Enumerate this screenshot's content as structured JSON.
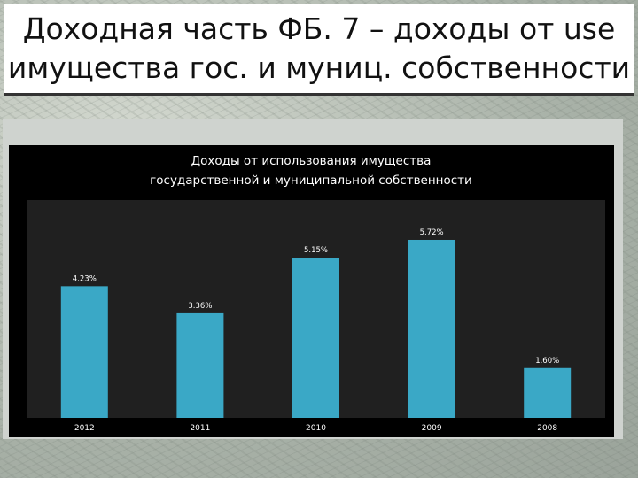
{
  "slide": {
    "title_line1": "Доходная часть ФБ. 7 – доходы от use",
    "title_line2": "имущества гос. и муниц. собственности"
  },
  "chart_data": {
    "type": "bar",
    "title_line1": "Доходы от использования имущества",
    "title_line2": "государственной и муниципальной собственности",
    "categories": [
      "2012",
      "2011",
      "2010",
      "2009",
      "2008"
    ],
    "values": [
      4.23,
      3.36,
      5.15,
      5.72,
      1.6
    ],
    "data_labels": [
      "4.23%",
      "3.36%",
      "5.15%",
      "5.72%",
      "1.60%"
    ],
    "unit": "%",
    "ylim": [
      0,
      7
    ],
    "grid": false,
    "legend": "none",
    "colors": {
      "bar": "#3aa8c6",
      "plot_area": "#202020",
      "panel": "#000000",
      "text": "#ffffff"
    }
  }
}
